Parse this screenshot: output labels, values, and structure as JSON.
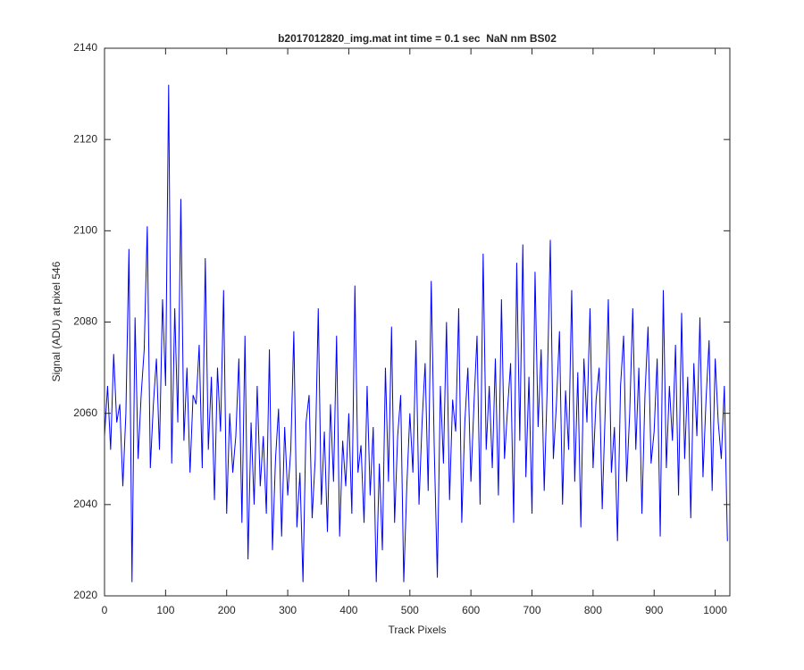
{
  "chart_data": {
    "type": "line",
    "title": "b2017012820_img.mat int time = 0.1 sec  NaN nm BS02",
    "x_label": "Track Pixels",
    "y_label": "Signal (ADU) at pixel 546",
    "x": [
      0,
      5,
      10,
      15,
      20,
      25,
      30,
      35,
      40,
      45,
      50,
      55,
      60,
      65,
      70,
      75,
      80,
      85,
      90,
      95,
      100,
      105,
      110,
      115,
      120,
      125,
      130,
      135,
      140,
      145,
      150,
      155,
      160,
      165,
      170,
      175,
      180,
      185,
      190,
      195,
      200,
      205,
      210,
      215,
      220,
      225,
      230,
      235,
      240,
      245,
      250,
      255,
      260,
      265,
      270,
      275,
      280,
      285,
      290,
      295,
      300,
      305,
      310,
      315,
      320,
      325,
      330,
      335,
      340,
      345,
      350,
      355,
      360,
      365,
      370,
      375,
      380,
      385,
      390,
      395,
      400,
      405,
      410,
      415,
      420,
      425,
      430,
      435,
      440,
      445,
      450,
      455,
      460,
      465,
      470,
      475,
      480,
      485,
      490,
      495,
      500,
      505,
      510,
      515,
      520,
      525,
      530,
      535,
      540,
      545,
      550,
      555,
      560,
      565,
      570,
      575,
      580,
      585,
      590,
      595,
      600,
      605,
      610,
      615,
      620,
      625,
      630,
      635,
      640,
      645,
      650,
      655,
      660,
      665,
      670,
      675,
      680,
      685,
      690,
      695,
      700,
      705,
      710,
      715,
      720,
      725,
      730,
      735,
      740,
      745,
      750,
      755,
      760,
      765,
      770,
      775,
      780,
      785,
      790,
      795,
      800,
      805,
      810,
      815,
      820,
      825,
      830,
      835,
      840,
      845,
      850,
      855,
      860,
      865,
      870,
      875,
      880,
      885,
      890,
      895,
      900,
      905,
      910,
      915,
      920,
      925,
      930,
      935,
      940,
      945,
      950,
      955,
      960,
      965,
      970,
      975,
      980,
      985,
      990,
      995,
      1000,
      1005,
      1010,
      1015,
      1020
    ],
    "series": [
      {
        "color": "#0000ff",
        "values": [
          2055,
          2066,
          2052,
          2073,
          2058,
          2062,
          2044,
          2060,
          2096,
          2023,
          2081,
          2050,
          2064,
          2074,
          2101,
          2048,
          2062,
          2072,
          2052,
          2085,
          2066,
          2132,
          2049,
          2083,
          2058,
          2107,
          2054,
          2070,
          2047,
          2064,
          2062,
          2075,
          2048,
          2094,
          2052,
          2068,
          2041,
          2070,
          2056,
          2087,
          2038,
          2060,
          2047,
          2055,
          2072,
          2036,
          2077,
          2028,
          2058,
          2040,
          2066,
          2044,
          2055,
          2038,
          2074,
          2030,
          2050,
          2061,
          2033,
          2057,
          2042,
          2052,
          2078,
          2035,
          2047,
          2023,
          2058,
          2064,
          2037,
          2050,
          2083,
          2040,
          2056,
          2034,
          2062,
          2045,
          2077,
          2033,
          2054,
          2044,
          2060,
          2038,
          2088,
          2047,
          2053,
          2036,
          2066,
          2042,
          2057,
          2023,
          2049,
          2030,
          2070,
          2045,
          2079,
          2036,
          2055,
          2064,
          2023,
          2044,
          2060,
          2047,
          2076,
          2040,
          2058,
          2071,
          2043,
          2089,
          2052,
          2024,
          2066,
          2049,
          2080,
          2041,
          2063,
          2056,
          2083,
          2036,
          2058,
          2070,
          2045,
          2062,
          2077,
          2040,
          2095,
          2052,
          2066,
          2048,
          2072,
          2042,
          2085,
          2050,
          2061,
          2071,
          2036,
          2093,
          2054,
          2097,
          2046,
          2068,
          2038,
          2091,
          2057,
          2074,
          2043,
          2066,
          2098,
          2050,
          2062,
          2078,
          2040,
          2065,
          2052,
          2087,
          2045,
          2069,
          2035,
          2072,
          2058,
          2083,
          2048,
          2063,
          2070,
          2039,
          2061,
          2085,
          2047,
          2057,
          2032,
          2066,
          2077,
          2045,
          2060,
          2083,
          2052,
          2070,
          2038,
          2064,
          2079,
          2049,
          2056,
          2072,
          2033,
          2087,
          2048,
          2066,
          2054,
          2075,
          2042,
          2082,
          2050,
          2068,
          2037,
          2071,
          2055,
          2081,
          2046,
          2063,
          2076,
          2043,
          2072,
          2058,
          2050,
          2066,
          2032
        ]
      }
    ],
    "xlim": [
      0,
      1024
    ],
    "xticks": [
      0,
      100,
      200,
      300,
      400,
      500,
      600,
      700,
      800,
      900,
      1000
    ],
    "ylim": [
      2020,
      2140
    ],
    "yticks": [
      2020,
      2040,
      2060,
      2080,
      2100,
      2120,
      2140
    ]
  }
}
